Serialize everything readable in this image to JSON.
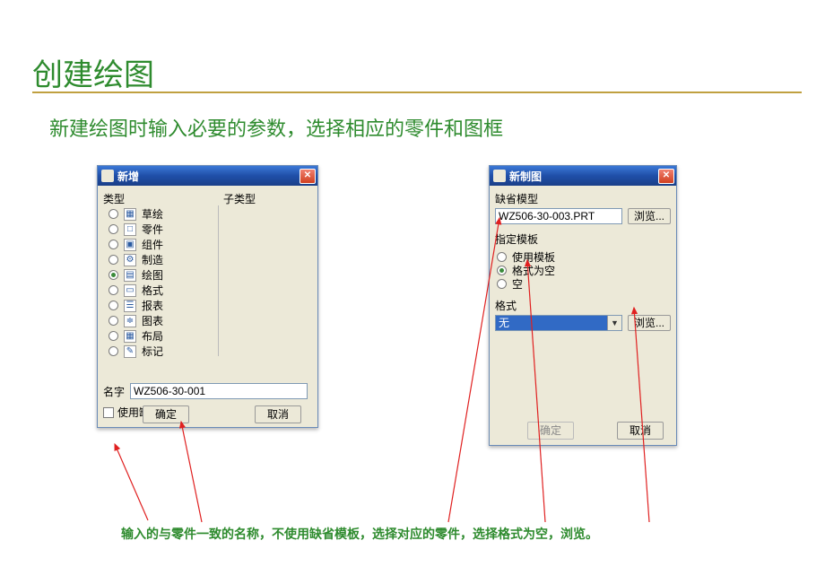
{
  "page": {
    "title": "创建绘图",
    "subtitle": "新建绘图时输入必要的参数，选择相应的零件和图框",
    "accent_color": "#2e8b2e",
    "rule_color": "#c0a040"
  },
  "dialog1": {
    "title": "新增",
    "type_label": "类型",
    "subtype_label": "子类型",
    "types": [
      {
        "label": "草绘",
        "icon": "▦",
        "checked": false
      },
      {
        "label": "零件",
        "icon": "□",
        "checked": false
      },
      {
        "label": "组件",
        "icon": "▣",
        "checked": false
      },
      {
        "label": "制造",
        "icon": "⚙",
        "checked": false
      },
      {
        "label": "绘图",
        "icon": "▤",
        "checked": true
      },
      {
        "label": "格式",
        "icon": "▭",
        "checked": false
      },
      {
        "label": "报表",
        "icon": "☰",
        "checked": false
      },
      {
        "label": "图表",
        "icon": "≑",
        "checked": false
      },
      {
        "label": "布局",
        "icon": "▦",
        "checked": false
      },
      {
        "label": "标记",
        "icon": "✎",
        "checked": false
      }
    ],
    "name_label": "名字",
    "name_value": "WZ506-30-001",
    "default_tpl_label": "使用缺省模板",
    "ok_label": "确定",
    "cancel_label": "取消"
  },
  "dialog2": {
    "title": "新制图",
    "default_model_label": "缺省模型",
    "model_value": "WZ506-30-003.PRT",
    "browse1_label": "浏览...",
    "specify_tpl_label": "指定模板",
    "tpl_options": [
      {
        "label": "使用模板",
        "checked": false
      },
      {
        "label": "格式为空",
        "checked": true
      },
      {
        "label": "空",
        "checked": false
      }
    ],
    "format_label": "格式",
    "format_selected": "无",
    "browse2_label": "浏览...",
    "ok_label": "确定",
    "cancel_label": "取消"
  },
  "annotation": "输入的与零件一致的名称，不使用缺省模板，选择对应的零件，选择格式为空，浏览。",
  "colors": {
    "arrow_red": "#e02020",
    "win_bg": "#ece9d8",
    "titlebar_top": "#3b77d6",
    "titlebar_bottom": "#1a3f88",
    "close_btn": "#d04020",
    "selection_bg": "#316ac5"
  }
}
